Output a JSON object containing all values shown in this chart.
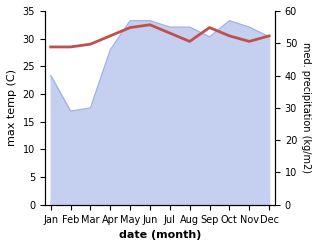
{
  "months": [
    "Jan",
    "Feb",
    "Mar",
    "Apr",
    "May",
    "Jun",
    "Jul",
    "Aug",
    "Sep",
    "Oct",
    "Nov",
    "Dec"
  ],
  "temp_max": [
    28.5,
    28.5,
    29.0,
    30.5,
    32.0,
    32.5,
    31.0,
    29.5,
    32.0,
    30.5,
    29.5,
    30.5
  ],
  "precip": [
    40,
    29,
    30,
    48,
    57,
    57,
    55,
    55,
    52,
    57,
    55,
    52
  ],
  "temp_color": "#c0504d",
  "precip_fill_color": "#c5d0f0",
  "precip_edge_color": "#a0b0e0",
  "background_color": "#ffffff",
  "xlabel": "date (month)",
  "ylabel_left": "max temp (C)",
  "ylabel_right": "med. precipitation (kg/m2)",
  "ylim_left": [
    0,
    35
  ],
  "ylim_right": [
    0,
    60
  ],
  "yticks_left": [
    0,
    5,
    10,
    15,
    20,
    25,
    30,
    35
  ],
  "yticks_right": [
    0,
    10,
    20,
    30,
    40,
    50,
    60
  ],
  "temp_linewidth": 2.0
}
